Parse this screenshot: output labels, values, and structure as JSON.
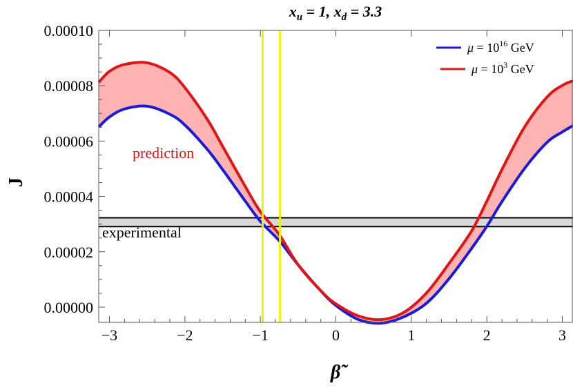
{
  "chart_data": {
    "type": "line",
    "title": "x_u = 1,  x_d = 3.3",
    "xlabel": "β̃",
    "ylabel": "J",
    "xlim": [
      -3.14159,
      3.14159
    ],
    "ylim": [
      -5.5e-06,
      0.0001
    ],
    "x_ticks": [
      -3,
      -2,
      -1,
      0,
      1,
      2,
      3
    ],
    "x_tick_labels": [
      "−3",
      "−2",
      "−1",
      "0",
      "1",
      "2",
      "3"
    ],
    "y_ticks": [
      0.0,
      2e-05,
      4e-05,
      6e-05,
      8e-05,
      0.0001
    ],
    "y_tick_labels": [
      "0.00000",
      "0.00002",
      "0.00004",
      "0.00006",
      "0.00008",
      "0.00010"
    ],
    "grid": false,
    "legend_position": "top-right",
    "series": [
      {
        "name": "μ = 10^16 GeV",
        "color": "#1a1adb",
        "x": [
          -3.14159,
          -3.0,
          -2.8,
          -2.5,
          -2.2,
          -2.0,
          -1.7,
          -1.5,
          -1.2,
          -1.0,
          -0.75,
          -0.5,
          -0.2,
          0.0,
          0.3,
          0.6,
          0.9,
          1.2,
          1.5,
          1.8,
          2.0,
          2.2,
          2.5,
          2.8,
          3.0,
          3.14159
        ],
        "y": [
          6.51e-05,
          6.87e-05,
          7.16e-05,
          7.26e-05,
          6.97e-05,
          6.58e-05,
          5.69e-05,
          4.97e-05,
          3.83e-05,
          3.1e-05,
          2.4e-05,
          1.53e-05,
          5.9e-06,
          6e-07,
          -4.5e-06,
          -5.8e-06,
          -3.5e-06,
          1.4e-06,
          1.03e-05,
          2.13e-05,
          2.92e-05,
          3.81e-05,
          5.01e-05,
          5.96e-05,
          6.33e-05,
          6.56e-05
        ]
      },
      {
        "name": "μ = 10^3 GeV",
        "color": "#e01515",
        "x": [
          -3.14159,
          -3.0,
          -2.8,
          -2.5,
          -2.2,
          -2.0,
          -1.7,
          -1.5,
          -1.2,
          -1.0,
          -0.75,
          -0.5,
          -0.2,
          0.0,
          0.3,
          0.6,
          0.9,
          1.2,
          1.5,
          1.8,
          2.0,
          2.2,
          2.5,
          2.8,
          3.0,
          3.14159
        ],
        "y": [
          8.12e-05,
          8.52e-05,
          8.77e-05,
          8.83e-05,
          8.48e-05,
          7.93e-05,
          6.77e-05,
          5.81e-05,
          4.36e-05,
          3.45e-05,
          2.62e-05,
          1.53e-05,
          5.9e-06,
          1.2e-06,
          -3.2e-06,
          -4.5e-06,
          -1.9e-06,
          5.1e-06,
          1.58e-05,
          2.76e-05,
          3.83e-05,
          4.97e-05,
          6.51e-05,
          7.6e-05,
          8.01e-05,
          8.18e-05
        ]
      }
    ],
    "experimental_band": {
      "label": "experimental",
      "y_low": 2.91e-05,
      "y_high": 3.23e-05
    },
    "vertical_lines": {
      "x": [
        -0.97,
        -0.74
      ],
      "color": "#f2f200"
    },
    "band_fill_label": "prediction",
    "band_fill_color": "#ffb3b3"
  },
  "legend": [
    {
      "pre": "μ = 10",
      "sup": "16",
      "post": " GeV",
      "color": "#1a1adb"
    },
    {
      "pre": "μ = 10",
      "sup": "3",
      "post": " GeV",
      "color": "#e01515"
    }
  ]
}
